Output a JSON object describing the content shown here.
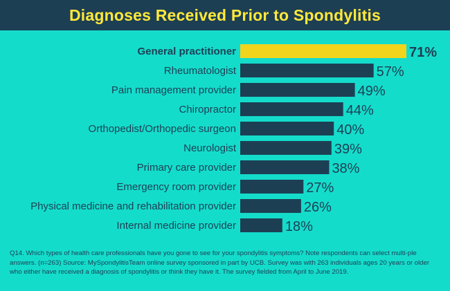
{
  "title": "Diagnoses Received Prior to Spondylitis",
  "colors": {
    "header_bg": "#1d3f54",
    "title_text": "#ffe93a",
    "background": "#14dccb",
    "bar": "#1d3f54",
    "highlight_bar": "#f2d41c",
    "text": "#1d3f54"
  },
  "chart_data": {
    "type": "bar",
    "orientation": "horizontal",
    "title": "Diagnoses Received Prior to Spondylitis",
    "categories": [
      "General practitioner",
      "Rheumatologist",
      "Pain management provider",
      "Chiropractor",
      "Orthopedist/Orthopedic surgeon",
      "Neurologist",
      "Primary care provider",
      "Emergency room provider",
      "Physical medicine and rehabilitation provider",
      "Internal medicine provider"
    ],
    "values": [
      71,
      57,
      49,
      44,
      40,
      39,
      38,
      27,
      26,
      18
    ],
    "value_labels": [
      "71%",
      "57%",
      "49%",
      "44%",
      "40%",
      "39%",
      "38%",
      "27%",
      "26%",
      "18%"
    ],
    "highlight_index": 0,
    "xlim": [
      0,
      71
    ],
    "grid": false,
    "legend": "none"
  },
  "footnote": "Q14. Which types of health care professionals have you gone to see for your spondylitis symptoms? Note respondents can select multi-ple answers. (n=263) Source: MySpondylitisTeam online survey sponsored in part by UCB. Survey was with 263 individuals ages 20 years or older who either have received a diagnosis of spondylitis or think they have it. The survey fielded from April to June 2019."
}
